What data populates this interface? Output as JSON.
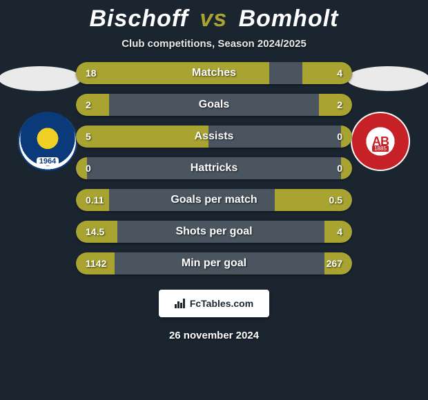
{
  "header": {
    "player1": "Bischoff",
    "vs": "vs",
    "player2": "Bomholt",
    "subtitle": "Club competitions, Season 2024/2025"
  },
  "badges": {
    "left_year": "1964",
    "right_text": "AB",
    "right_year": "1885"
  },
  "stats": {
    "bar_bg": "#4a5560",
    "left_color": "#a9a431",
    "right_color": "#a9a431",
    "rows": [
      {
        "label": "Matches",
        "left": "18",
        "right": "4",
        "left_pct": 70,
        "right_pct": 18
      },
      {
        "label": "Goals",
        "left": "2",
        "right": "2",
        "left_pct": 12,
        "right_pct": 12
      },
      {
        "label": "Assists",
        "left": "5",
        "right": "0",
        "left_pct": 48,
        "right_pct": 4
      },
      {
        "label": "Hattricks",
        "left": "0",
        "right": "0",
        "left_pct": 4,
        "right_pct": 4
      },
      {
        "label": "Goals per match",
        "left": "0.11",
        "right": "0.5",
        "left_pct": 12,
        "right_pct": 28
      },
      {
        "label": "Shots per goal",
        "left": "14.5",
        "right": "4",
        "left_pct": 15,
        "right_pct": 10
      },
      {
        "label": "Min per goal",
        "left": "1142",
        "right": "267",
        "left_pct": 14,
        "right_pct": 10
      }
    ]
  },
  "footer": {
    "brand": "FcTables.com",
    "date": "26 november 2024"
  },
  "style": {
    "title_fontsize": 34,
    "bg": "#1a2530",
    "accent": "#a9a431"
  }
}
